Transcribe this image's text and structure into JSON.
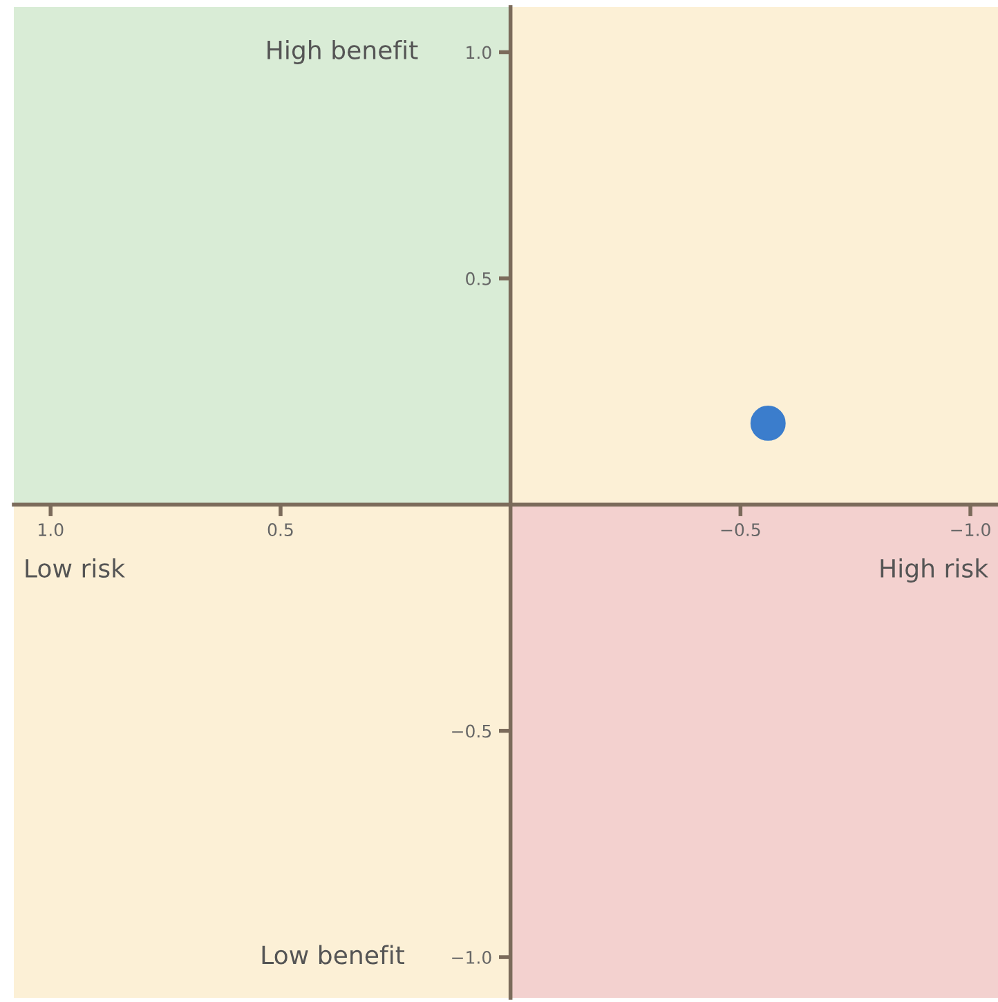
{
  "chart_data": {
    "type": "scatter",
    "x": [
      -0.56
    ],
    "values": [
      0.18
    ],
    "color": "#3b7dcc",
    "marker": "circle",
    "xlim": [
      1.08,
      -1.06
    ],
    "ylim": [
      -1.09,
      1.1
    ],
    "xticks": [
      {
        "value": 1.0,
        "label": "1.0"
      },
      {
        "value": 0.5,
        "label": "0.5"
      },
      {
        "value": -0.5,
        "label": "−0.5"
      },
      {
        "value": -1.0,
        "label": "−1.0"
      }
    ],
    "yticks": [
      {
        "value": 1.0,
        "label": "1.0"
      },
      {
        "value": 0.5,
        "label": "0.5"
      },
      {
        "value": -0.5,
        "label": "−0.5"
      },
      {
        "value": -1.0,
        "label": "−1.0"
      }
    ],
    "grid": false,
    "annotations": [
      "High benefit",
      "Low benefit",
      "Low risk",
      "High risk"
    ]
  }
}
